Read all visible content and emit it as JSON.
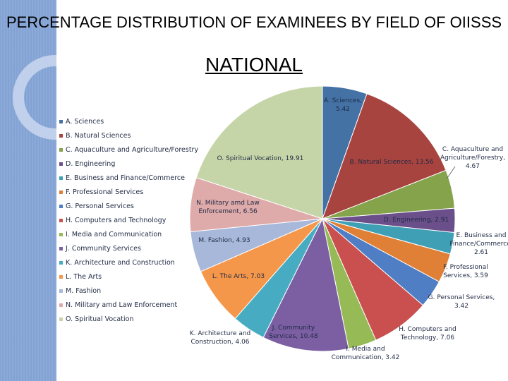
{
  "slide": {
    "title": "PERCENTAGE DISTRIBUTION OF EXAMINEES BY FIELD OF OIISSS",
    "subtitle": "NATIONAL"
  },
  "chart_data": {
    "type": "pie",
    "title": "PERCENTAGE DISTRIBUTION OF EXAMINEES BY FIELD OF OIISSS",
    "subtitle": "NATIONAL",
    "legend_position": "left",
    "series": [
      {
        "name": "",
        "values": [
          5.42,
          13.56,
          4.67,
          2.91,
          2.61,
          3.59,
          3.42,
          7.06,
          3.42,
          10.48,
          4.06,
          7.03,
          4.93,
          6.56,
          19.91
        ]
      }
    ],
    "categories": [
      "A. Sciences",
      "B. Natural Sciences",
      "C. Aquaculture and Agriculture/Forestry",
      "D. Engineering",
      "E. Business and Finance/Commerce",
      "F. Professional Services",
      "G. Personal Services",
      "H. Computers and Technology",
      "I. Media and Communication",
      "J. Community Services",
      "K. Architecture and Construction",
      "L. The Arts",
      "M. Fashion",
      "N. Military amd Law Enforcement",
      "O. Spiritual Vocation"
    ],
    "colors": [
      "#4472a4",
      "#a84440",
      "#85a34a",
      "#6b4f8a",
      "#3f9fb5",
      "#e07f36",
      "#4f7ec4",
      "#c9504e",
      "#96ba55",
      "#7c5fa3",
      "#47acc2",
      "#f5974a",
      "#a8b8da",
      "#dfaaaa",
      "#c6d5a8"
    ],
    "data_labels": [
      [
        "A. Sciences,",
        "5.42"
      ],
      [
        "B. Natural Sciences, 13.56"
      ],
      [
        "C. Aquaculture and",
        "Agriculture/Forestry,",
        "4.67"
      ],
      [
        "D. Engineering, 2.91"
      ],
      [
        "E. Business and",
        "Finance/Commerce,",
        "2.61"
      ],
      [
        "F. Professional",
        "Services, 3.59"
      ],
      [
        "G. Personal Services,",
        "3.42"
      ],
      [
        "H. Computers and",
        "Technology, 7.06"
      ],
      [
        "I. Media and",
        "Communication, 3.42"
      ],
      [
        "J. Community",
        "Services, 10.48"
      ],
      [
        "K. Architecture and",
        "Construction, 4.06"
      ],
      [
        "L. The Arts, 7.03"
      ],
      [
        "M. Fashion, 4.93"
      ],
      [
        "N. Military amd Law",
        "Enforcement, 6.56"
      ],
      [
        "O. Spiritual Vocation, 19.91"
      ]
    ]
  }
}
